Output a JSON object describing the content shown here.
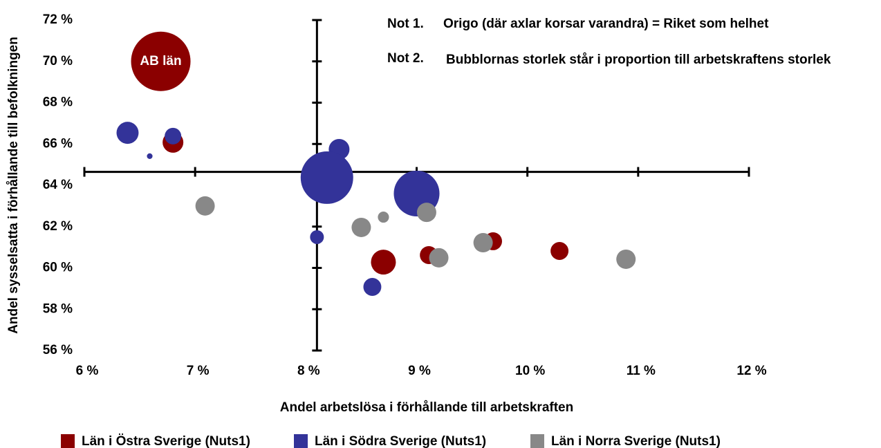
{
  "chart_data": {
    "type": "bubble",
    "xlabel": "Andel arbetslösa i förhållande till arbetskraften",
    "ylabel": "Andel sysselsatta i förhållande till befolkningen",
    "xlim": [
      6,
      12
    ],
    "ylim": [
      56,
      72
    ],
    "xticks": [
      {
        "value": 6,
        "label": "6 %"
      },
      {
        "value": 7,
        "label": "7 %"
      },
      {
        "value": 8,
        "label": "8 %"
      },
      {
        "value": 9,
        "label": "9 %"
      },
      {
        "value": 10,
        "label": "10 %"
      },
      {
        "value": 11,
        "label": "11 %"
      },
      {
        "value": 12,
        "label": "12 %"
      }
    ],
    "yticks": [
      {
        "value": 56,
        "label": "56 %"
      },
      {
        "value": 58,
        "label": "58 %"
      },
      {
        "value": 60,
        "label": "60 %"
      },
      {
        "value": 62,
        "label": "62 %"
      },
      {
        "value": 64,
        "label": "64 %"
      },
      {
        "value": 66,
        "label": "66 %"
      },
      {
        "value": 68,
        "label": "68 %"
      },
      {
        "value": 70,
        "label": "70 %"
      },
      {
        "value": 72,
        "label": "72 %"
      }
    ],
    "origin": {
      "x": 8.1,
      "y": 64.65
    },
    "notes": [
      {
        "label": "Not 1.",
        "text": "Origo (där axlar korsar varandra) = Riket som helhet"
      },
      {
        "label": "Not 2.",
        "text": "Bubblornas storlek står i proportion till arbetskraftens storlek"
      }
    ],
    "legend": "bottom",
    "series": [
      {
        "name": "Län i Östra Sverige (Nuts1)",
        "color": "#8b0000",
        "x": [
          6.69,
          6.8,
          8.7,
          9.11,
          9.69,
          10.29
        ],
        "values": [
          70.0,
          66.08,
          60.28,
          60.62,
          61.29,
          60.82
        ],
        "sizes": [
          100,
          12.2,
          17.5,
          9.1,
          9.1,
          9.1
        ],
        "labels": [
          "AB län",
          null,
          null,
          null,
          null,
          null
        ]
      },
      {
        "name": "Län i Södra Sverige (Nuts1)",
        "color": "#333399",
        "x": [
          6.39,
          6.8,
          6.59,
          8.3,
          8.19,
          9.0,
          8.1,
          8.6
        ],
        "values": [
          66.54,
          66.38,
          65.41,
          65.74,
          64.37,
          63.6,
          61.49,
          59.08
        ],
        "sizes": [
          13.8,
          7.8,
          0.9,
          12.2,
          78,
          59,
          5.4,
          9.1
        ]
      },
      {
        "name": "Län i Norra Sverige (Nuts1)",
        "color": "#888888",
        "x": [
          7.09,
          8.5,
          8.7,
          9.09,
          9.2,
          9.6,
          10.89
        ],
        "values": [
          63.0,
          61.96,
          62.46,
          62.69,
          60.49,
          61.22,
          60.42
        ],
        "sizes": [
          10.6,
          10.6,
          3.5,
          10.6,
          10.6,
          10.6,
          10.6
        ]
      }
    ]
  }
}
